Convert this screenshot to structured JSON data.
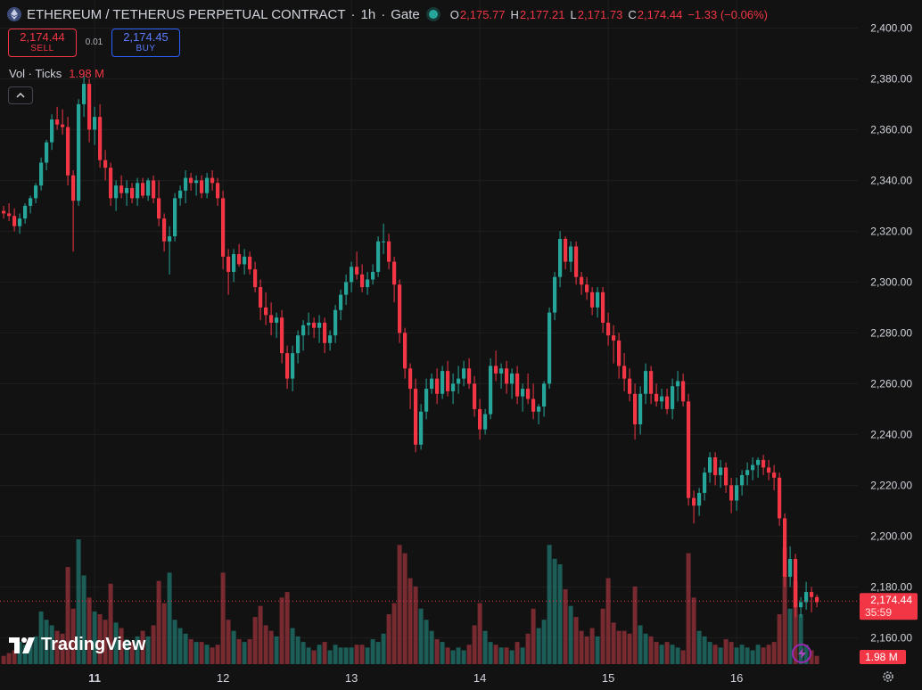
{
  "header": {
    "symbol": "ETHEREUM / TETHERUS PERPETUAL CONTRACT",
    "interval": "1h",
    "exchange": "Gate",
    "sep1": "·",
    "sep2": "·",
    "open_label": "O",
    "open": "2,175.77",
    "high_label": "H",
    "high": "2,177.21",
    "low_label": "L",
    "low": "2,171.73",
    "close_label": "C",
    "close": "2,174.44",
    "change": "−1.33 (−0.06%)"
  },
  "trade": {
    "sell_price": "2,174.44",
    "sell_label": "SELL",
    "spread": "0.01",
    "buy_price": "2,174.45",
    "buy_label": "BUY"
  },
  "volume_legend": {
    "label": "Vol · Ticks",
    "value": "1.98 M"
  },
  "logo_text": "TradingView",
  "icons": {
    "collapse": "chevron-up-icon",
    "bolt": "lightning-icon",
    "settings": "gear-icon",
    "coin": "ethereum-icon"
  },
  "colors": {
    "up": "#26a69a",
    "down": "#f23645",
    "background": "#121212",
    "grid": "#1f1f1f"
  },
  "chart_data": {
    "type": "candlestick",
    "y_ticks": [
      "2,400.00",
      "2,380.00",
      "2,360.00",
      "2,340.00",
      "2,320.00",
      "2,300.00",
      "2,280.00",
      "2,260.00",
      "2,240.00",
      "2,220.00",
      "2,200.00",
      "2,180.00",
      "2,160.00"
    ],
    "y_tick_values": [
      2400,
      2380,
      2360,
      2340,
      2320,
      2300,
      2280,
      2260,
      2240,
      2220,
      2200,
      2180,
      2160
    ],
    "ylim": [
      2149.6,
      2402.6
    ],
    "x_labels": [
      "11",
      "12",
      "13",
      "14",
      "15",
      "16"
    ],
    "x_label_index": [
      17,
      41,
      65,
      89,
      113,
      137
    ],
    "last_price": "2,174.44",
    "last_price_value": 2174.44,
    "countdown": "35:59",
    "last_volume": "1.98 M",
    "volume_max": 4.5,
    "candles": [
      [
        2328,
        2330,
        2325,
        2327,
        0.3
      ],
      [
        2327,
        2331,
        2324,
        2326,
        0.4
      ],
      [
        2326,
        2329,
        2320,
        2322,
        0.5
      ],
      [
        2322,
        2327,
        2319,
        2325,
        0.8
      ],
      [
        2325,
        2331,
        2323,
        2330,
        0.7
      ],
      [
        2330,
        2334,
        2327,
        2333,
        0.9
      ],
      [
        2333,
        2339,
        2331,
        2338,
        1.0
      ],
      [
        2338,
        2349,
        2336,
        2347,
        1.9
      ],
      [
        2347,
        2356,
        2344,
        2355,
        1.6
      ],
      [
        2355,
        2366,
        2352,
        2364,
        1.4
      ],
      [
        2364,
        2369,
        2360,
        2362,
        1.2
      ],
      [
        2362,
        2368,
        2358,
        2361,
        1.1
      ],
      [
        2361,
        2365,
        2338,
        2342,
        3.5
      ],
      [
        2342,
        2344,
        2312,
        2332,
        2.0
      ],
      [
        2332,
        2372,
        2330,
        2370,
        4.5
      ],
      [
        2370,
        2383,
        2365,
        2378,
        3.2
      ],
      [
        2378,
        2380,
        2355,
        2360,
        2.4
      ],
      [
        2360,
        2369,
        2354,
        2365,
        1.9
      ],
      [
        2365,
        2370,
        2345,
        2348,
        1.8
      ],
      [
        2348,
        2352,
        2340,
        2345,
        1.6
      ],
      [
        2345,
        2347,
        2330,
        2333,
        2.9
      ],
      [
        2333,
        2340,
        2328,
        2338,
        1.5
      ],
      [
        2338,
        2342,
        2333,
        2335,
        1.3
      ],
      [
        2335,
        2340,
        2330,
        2337,
        0.9
      ],
      [
        2337,
        2339,
        2331,
        2333,
        0.8
      ],
      [
        2333,
        2341,
        2330,
        2339,
        1.0
      ],
      [
        2339,
        2341,
        2333,
        2334,
        1.2
      ],
      [
        2334,
        2341,
        2332,
        2340,
        1.0
      ],
      [
        2340,
        2342,
        2331,
        2333,
        1.4
      ],
      [
        2333,
        2340,
        2322,
        2325,
        3.0
      ],
      [
        2325,
        2327,
        2312,
        2316,
        2.2
      ],
      [
        2316,
        2322,
        2303,
        2318,
        3.3
      ],
      [
        2318,
        2335,
        2316,
        2333,
        1.6
      ],
      [
        2333,
        2338,
        2330,
        2336,
        1.3
      ],
      [
        2336,
        2344,
        2331,
        2341,
        1.1
      ],
      [
        2341,
        2343,
        2336,
        2339,
        0.9
      ],
      [
        2339,
        2342,
        2334,
        2340,
        0.8
      ],
      [
        2340,
        2342,
        2333,
        2335,
        0.8
      ],
      [
        2335,
        2343,
        2333,
        2341,
        0.7
      ],
      [
        2341,
        2344,
        2336,
        2339,
        0.6
      ],
      [
        2339,
        2341,
        2330,
        2333,
        0.7
      ],
      [
        2333,
        2336,
        2305,
        2310,
        3.3
      ],
      [
        2310,
        2313,
        2295,
        2304,
        1.6
      ],
      [
        2304,
        2313,
        2300,
        2311,
        1.2
      ],
      [
        2311,
        2315,
        2306,
        2307,
        0.9
      ],
      [
        2307,
        2313,
        2303,
        2310,
        0.8
      ],
      [
        2310,
        2312,
        2303,
        2305,
        0.9
      ],
      [
        2305,
        2308,
        2296,
        2298,
        1.7
      ],
      [
        2298,
        2301,
        2285,
        2290,
        2.1
      ],
      [
        2290,
        2296,
        2283,
        2287,
        1.4
      ],
      [
        2287,
        2292,
        2279,
        2284,
        1.2
      ],
      [
        2284,
        2288,
        2278,
        2286,
        1.0
      ],
      [
        2286,
        2289,
        2268,
        2272,
        2.4
      ],
      [
        2272,
        2275,
        2258,
        2262,
        2.6
      ],
      [
        2262,
        2275,
        2257,
        2272,
        1.3
      ],
      [
        2272,
        2281,
        2268,
        2279,
        1.0
      ],
      [
        2279,
        2285,
        2273,
        2283,
        0.8
      ],
      [
        2283,
        2288,
        2279,
        2284,
        0.6
      ],
      [
        2284,
        2286,
        2278,
        2282,
        0.5
      ],
      [
        2282,
        2287,
        2276,
        2284,
        0.7
      ],
      [
        2284,
        2286,
        2272,
        2276,
        0.8
      ],
      [
        2276,
        2281,
        2273,
        2279,
        0.5
      ],
      [
        2279,
        2291,
        2276,
        2289,
        0.7
      ],
      [
        2289,
        2297,
        2285,
        2295,
        0.6
      ],
      [
        2295,
        2303,
        2291,
        2300,
        0.6
      ],
      [
        2300,
        2308,
        2296,
        2306,
        0.6
      ],
      [
        2306,
        2312,
        2301,
        2303,
        0.7
      ],
      [
        2303,
        2307,
        2296,
        2298,
        0.7
      ],
      [
        2298,
        2304,
        2295,
        2301,
        0.6
      ],
      [
        2301,
        2307,
        2299,
        2304,
        0.9
      ],
      [
        2304,
        2318,
        2302,
        2316,
        0.8
      ],
      [
        2316,
        2323,
        2311,
        2316,
        1.1
      ],
      [
        2316,
        2319,
        2305,
        2308,
        1.8
      ],
      [
        2308,
        2310,
        2292,
        2299,
        2.2
      ],
      [
        2299,
        2301,
        2276,
        2280,
        4.3
      ],
      [
        2280,
        2282,
        2262,
        2266,
        4.0
      ],
      [
        2266,
        2268,
        2250,
        2258,
        3.1
      ],
      [
        2258,
        2262,
        2233,
        2236,
        2.8
      ],
      [
        2236,
        2252,
        2234,
        2249,
        2.0
      ],
      [
        2249,
        2262,
        2246,
        2258,
        1.6
      ],
      [
        2258,
        2264,
        2256,
        2262,
        1.2
      ],
      [
        2262,
        2266,
        2252,
        2256,
        0.9
      ],
      [
        2256,
        2267,
        2254,
        2265,
        0.8
      ],
      [
        2265,
        2269,
        2255,
        2257,
        0.6
      ],
      [
        2257,
        2264,
        2252,
        2260,
        0.5
      ],
      [
        2260,
        2267,
        2256,
        2262,
        0.6
      ],
      [
        2262,
        2269,
        2259,
        2266,
        0.5
      ],
      [
        2266,
        2270,
        2258,
        2260,
        0.7
      ],
      [
        2260,
        2263,
        2247,
        2250,
        1.4
      ],
      [
        2250,
        2254,
        2238,
        2242,
        2.2
      ],
      [
        2242,
        2250,
        2240,
        2248,
        1.2
      ],
      [
        2248,
        2270,
        2246,
        2267,
        0.8
      ],
      [
        2267,
        2273,
        2261,
        2264,
        0.7
      ],
      [
        2264,
        2268,
        2258,
        2266,
        0.6
      ],
      [
        2266,
        2269,
        2256,
        2260,
        0.6
      ],
      [
        2260,
        2266,
        2254,
        2264,
        0.5
      ],
      [
        2264,
        2267,
        2252,
        2255,
        0.8
      ],
      [
        2255,
        2260,
        2249,
        2258,
        0.6
      ],
      [
        2258,
        2264,
        2252,
        2254,
        1.1
      ],
      [
        2254,
        2260,
        2246,
        2249,
        2.0
      ],
      [
        2249,
        2252,
        2244,
        2251,
        1.3
      ],
      [
        2251,
        2261,
        2247,
        2260,
        1.6
      ],
      [
        2260,
        2290,
        2258,
        2288,
        4.3
      ],
      [
        2288,
        2304,
        2285,
        2302,
        3.8
      ],
      [
        2302,
        2320,
        2298,
        2317,
        3.6
      ],
      [
        2317,
        2318,
        2305,
        2308,
        2.7
      ],
      [
        2308,
        2316,
        2304,
        2314,
        2.1
      ],
      [
        2314,
        2316,
        2299,
        2302,
        1.7
      ],
      [
        2302,
        2304,
        2295,
        2299,
        1.2
      ],
      [
        2299,
        2302,
        2293,
        2296,
        1.0
      ],
      [
        2296,
        2298,
        2287,
        2290,
        1.3
      ],
      [
        2290,
        2298,
        2286,
        2296,
        1.0
      ],
      [
        2296,
        2298,
        2280,
        2284,
        2.0
      ],
      [
        2284,
        2288,
        2275,
        2279,
        3.1
      ],
      [
        2279,
        2283,
        2268,
        2277,
        1.5
      ],
      [
        2277,
        2280,
        2262,
        2267,
        1.2
      ],
      [
        2267,
        2272,
        2257,
        2262,
        1.2
      ],
      [
        2262,
        2266,
        2253,
        2256,
        1.1
      ],
      [
        2256,
        2260,
        2238,
        2244,
        2.8
      ],
      [
        2244,
        2259,
        2240,
        2256,
        1.4
      ],
      [
        2256,
        2268,
        2252,
        2265,
        1.1
      ],
      [
        2265,
        2267,
        2252,
        2256,
        1.0
      ],
      [
        2256,
        2260,
        2251,
        2253,
        0.8
      ],
      [
        2253,
        2258,
        2250,
        2255,
        0.7
      ],
      [
        2255,
        2258,
        2248,
        2250,
        0.8
      ],
      [
        2250,
        2262,
        2246,
        2259,
        0.7
      ],
      [
        2259,
        2265,
        2253,
        2261,
        0.6
      ],
      [
        2261,
        2264,
        2251,
        2253,
        0.5
      ],
      [
        2253,
        2256,
        2212,
        2215,
        4.0
      ],
      [
        2215,
        2218,
        2205,
        2212,
        2.4
      ],
      [
        2212,
        2219,
        2208,
        2217,
        1.2
      ],
      [
        2217,
        2227,
        2214,
        2225,
        1.0
      ],
      [
        2225,
        2233,
        2221,
        2231,
        0.8
      ],
      [
        2231,
        2233,
        2220,
        2224,
        0.7
      ],
      [
        2224,
        2230,
        2219,
        2227,
        0.6
      ],
      [
        2227,
        2229,
        2217,
        2220,
        0.9
      ],
      [
        2220,
        2223,
        2209,
        2214,
        0.8
      ],
      [
        2214,
        2223,
        2210,
        2220,
        0.6
      ],
      [
        2220,
        2226,
        2216,
        2224,
        0.7
      ],
      [
        2224,
        2229,
        2220,
        2226,
        0.6
      ],
      [
        2226,
        2231,
        2222,
        2228,
        0.5
      ],
      [
        2228,
        2231,
        2223,
        2230,
        0.7
      ],
      [
        2230,
        2232,
        2224,
        2227,
        0.6
      ],
      [
        2227,
        2230,
        2222,
        2225,
        0.7
      ],
      [
        2225,
        2228,
        2218,
        2223,
        0.8
      ],
      [
        2223,
        2225,
        2204,
        2207,
        1.8
      ],
      [
        2207,
        2209,
        2180,
        2184,
        4.2
      ],
      [
        2184,
        2196,
        2180,
        2191,
        2.0
      ],
      [
        2191,
        2193,
        2168,
        2172,
        3.0
      ],
      [
        2172,
        2176,
        2168,
        2174,
        1.8
      ],
      [
        2174,
        2182,
        2171,
        2178,
        0.7
      ],
      [
        2178,
        2180,
        2170,
        2176,
        0.5
      ],
      [
        2176,
        2177,
        2172,
        2174,
        0.3
      ]
    ]
  }
}
